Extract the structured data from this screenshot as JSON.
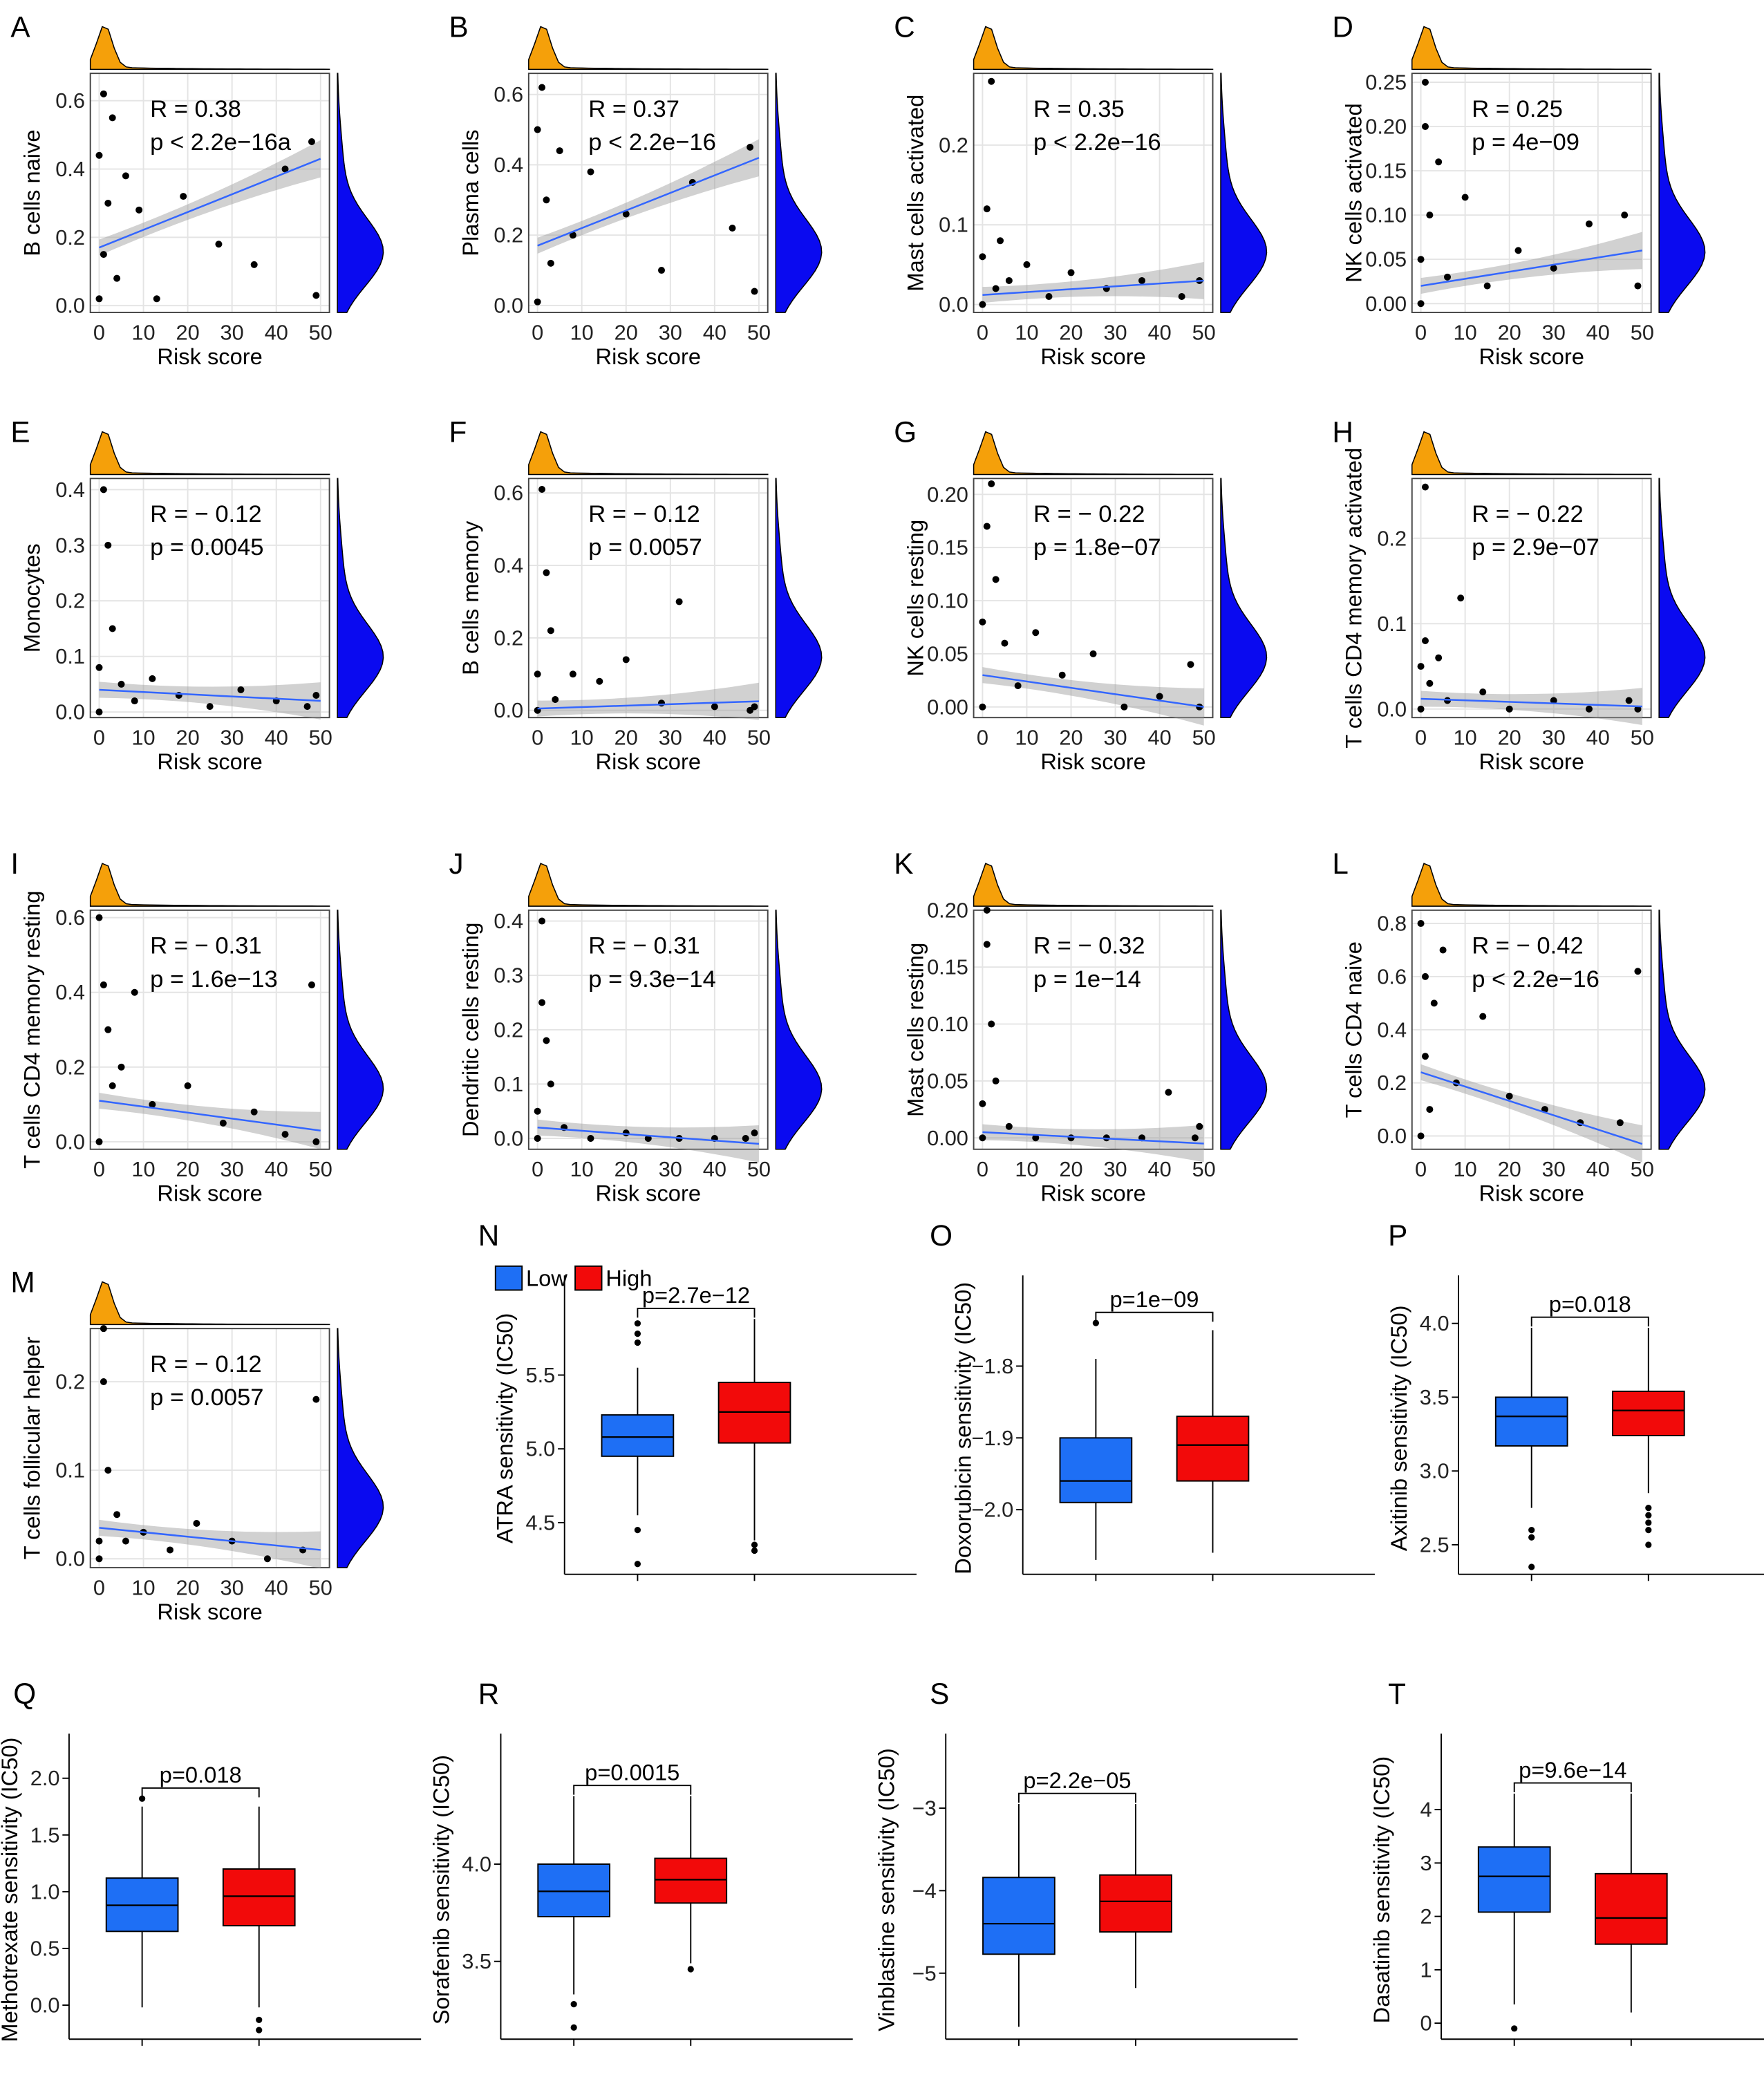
{
  "legend": [
    {
      "name": "Low",
      "color": "#1e6ff5"
    },
    {
      "name": "High",
      "color": "#f20a0a"
    }
  ],
  "chart_data": [
    {
      "type": "scatter",
      "panel": "A",
      "ylabel": "B cells naive",
      "xlabel": "Risk score",
      "r_label": "R = 0.38",
      "p_label": "p < 2.2e−16a",
      "xlim": [
        -2,
        52
      ],
      "xticks": [
        0,
        10,
        20,
        30,
        40,
        50
      ],
      "ylim": [
        -0.02,
        0.68
      ],
      "yticks": [
        {
          "value": 0,
          "label": "0.0"
        },
        0.2,
        0.4,
        0.6
      ],
      "x": [
        0,
        0,
        1,
        1,
        2,
        3,
        4,
        6,
        9,
        13,
        19,
        27,
        35,
        42,
        48,
        49
      ],
      "y": [
        0.02,
        0.44,
        0.62,
        0.15,
        0.3,
        0.55,
        0.08,
        0.38,
        0.28,
        0.02,
        0.32,
        0.18,
        0.12,
        0.4,
        0.48,
        0.03
      ],
      "fit": {
        "x": [
          0,
          50
        ],
        "y": [
          0.17,
          0.43
        ]
      }
    },
    {
      "type": "scatter",
      "panel": "B",
      "ylabel": "Plasma cells",
      "xlabel": "Risk score",
      "r_label": "R = 0.37",
      "p_label": "p < 2.2e−16",
      "xlim": [
        -2,
        52
      ],
      "xticks": [
        0,
        10,
        20,
        30,
        40,
        50
      ],
      "ylim": [
        -0.02,
        0.66
      ],
      "yticks": [
        {
          "value": 0,
          "label": "0.0"
        },
        0.2,
        0.4,
        0.6
      ],
      "x": [
        0,
        0,
        1,
        2,
        3,
        5,
        8,
        12,
        20,
        28,
        35,
        44,
        48,
        49
      ],
      "y": [
        0.01,
        0.5,
        0.62,
        0.3,
        0.12,
        0.44,
        0.2,
        0.38,
        0.26,
        0.1,
        0.35,
        0.22,
        0.45,
        0.04
      ],
      "fit": {
        "x": [
          0,
          50
        ],
        "y": [
          0.17,
          0.42
        ]
      }
    },
    {
      "type": "scatter",
      "panel": "C",
      "ylabel": "Mast cells activated",
      "xlabel": "Risk score",
      "r_label": "R = 0.35",
      "p_label": "p < 2.2e−16",
      "xlim": [
        -2,
        52
      ],
      "xticks": [
        0,
        10,
        20,
        30,
        40,
        50
      ],
      "ylim": [
        -0.01,
        0.29
      ],
      "yticks": [
        {
          "value": 0,
          "label": "0.0"
        },
        0.1,
        0.2
      ],
      "x": [
        0,
        0,
        1,
        2,
        3,
        4,
        6,
        10,
        15,
        20,
        28,
        36,
        45,
        49
      ],
      "y": [
        0.0,
        0.06,
        0.12,
        0.28,
        0.02,
        0.08,
        0.03,
        0.05,
        0.01,
        0.04,
        0.02,
        0.03,
        0.01,
        0.03
      ],
      "fit": {
        "x": [
          0,
          50
        ],
        "y": [
          0.012,
          0.03
        ]
      }
    },
    {
      "type": "scatter",
      "panel": "D",
      "ylabel": "NK cells activated",
      "xlabel": "Risk score",
      "r_label": "R = 0.25",
      "p_label": "p = 4e−09",
      "xlim": [
        -2,
        52
      ],
      "xticks": [
        0,
        10,
        20,
        30,
        40,
        50
      ],
      "ylim": [
        -0.01,
        0.26
      ],
      "yticks": [
        {
          "value": 0,
          "label": "0.00"
        },
        0.05,
        {
          "value": 0.1,
          "label": "0.10"
        },
        0.15,
        {
          "value": 0.2,
          "label": "0.20"
        },
        0.25
      ],
      "x": [
        0,
        0,
        1,
        1,
        2,
        4,
        6,
        10,
        15,
        22,
        30,
        38,
        46,
        49
      ],
      "y": [
        0.0,
        0.05,
        0.25,
        0.2,
        0.1,
        0.16,
        0.03,
        0.12,
        0.02,
        0.06,
        0.04,
        0.09,
        0.1,
        0.02
      ],
      "fit": {
        "x": [
          0,
          50
        ],
        "y": [
          0.02,
          0.06
        ]
      }
    },
    {
      "type": "scatter",
      "panel": "E",
      "ylabel": "Monocytes",
      "xlabel": "Risk score",
      "r_label": "R = − 0.12",
      "p_label": "p = 0.0045",
      "xlim": [
        -2,
        52
      ],
      "xticks": [
        0,
        10,
        20,
        30,
        40,
        50
      ],
      "ylim": [
        -0.01,
        0.42
      ],
      "yticks": [
        {
          "value": 0,
          "label": "0.0"
        },
        0.1,
        0.2,
        0.3,
        0.4
      ],
      "x": [
        0,
        0,
        1,
        2,
        3,
        5,
        8,
        12,
        18,
        25,
        32,
        40,
        47,
        49
      ],
      "y": [
        0.0,
        0.08,
        0.4,
        0.3,
        0.15,
        0.05,
        0.02,
        0.06,
        0.03,
        0.01,
        0.04,
        0.02,
        0.01,
        0.03
      ],
      "fit": {
        "x": [
          0,
          50
        ],
        "y": [
          0.04,
          0.02
        ]
      }
    },
    {
      "type": "scatter",
      "panel": "F",
      "ylabel": "B cells memory",
      "xlabel": "Risk score",
      "r_label": "R = − 0.12",
      "p_label": "p = 0.0057",
      "xlim": [
        -2,
        52
      ],
      "xticks": [
        0,
        10,
        20,
        30,
        40,
        50
      ],
      "ylim": [
        -0.02,
        0.64
      ],
      "yticks": [
        {
          "value": 0,
          "label": "0.0"
        },
        0.2,
        0.4,
        0.6
      ],
      "x": [
        0,
        0,
        1,
        2,
        3,
        4,
        8,
        14,
        20,
        28,
        32,
        40,
        48,
        49
      ],
      "y": [
        0.0,
        0.1,
        0.61,
        0.38,
        0.22,
        0.03,
        0.1,
        0.08,
        0.14,
        0.02,
        0.3,
        0.01,
        0.0,
        0.01
      ],
      "fit": {
        "x": [
          0,
          50
        ],
        "y": [
          0.005,
          0.025
        ]
      }
    },
    {
      "type": "scatter",
      "panel": "G",
      "ylabel": "NK cells resting",
      "xlabel": "Risk score",
      "r_label": "R = − 0.22",
      "p_label": "p = 1.8e−07",
      "xlim": [
        -2,
        52
      ],
      "xticks": [
        0,
        10,
        20,
        30,
        40,
        50
      ],
      "ylim": [
        -0.01,
        0.215
      ],
      "yticks": [
        {
          "value": 0,
          "label": "0.00"
        },
        0.05,
        {
          "value": 0.1,
          "label": "0.10"
        },
        0.15,
        {
          "value": 0.2,
          "label": "0.20"
        }
      ],
      "x": [
        0,
        0,
        1,
        2,
        3,
        5,
        8,
        12,
        18,
        25,
        32,
        40,
        47,
        49
      ],
      "y": [
        0.0,
        0.08,
        0.17,
        0.21,
        0.12,
        0.06,
        0.02,
        0.07,
        0.03,
        0.05,
        0.0,
        0.01,
        0.04,
        0.0
      ],
      "fit": {
        "x": [
          0,
          50
        ],
        "y": [
          0.03,
          0.0
        ]
      }
    },
    {
      "type": "scatter",
      "panel": "H",
      "ylabel": "T cells CD4 memory activated",
      "xlabel": "Risk score",
      "r_label": "R = − 0.22",
      "p_label": "p = 2.9e−07",
      "xlim": [
        -2,
        52
      ],
      "xticks": [
        0,
        10,
        20,
        30,
        40,
        50
      ],
      "ylim": [
        -0.01,
        0.27
      ],
      "yticks": [
        {
          "value": 0,
          "label": "0.0"
        },
        0.1,
        0.2
      ],
      "x": [
        0,
        0,
        1,
        1,
        2,
        4,
        6,
        9,
        14,
        20,
        30,
        38,
        47,
        49
      ],
      "y": [
        0.0,
        0.05,
        0.26,
        0.08,
        0.03,
        0.06,
        0.01,
        0.13,
        0.02,
        0.0,
        0.01,
        0.0,
        0.01,
        0.0
      ],
      "fit": {
        "x": [
          0,
          50
        ],
        "y": [
          0.012,
          0.003
        ]
      }
    },
    {
      "type": "scatter",
      "panel": "I",
      "ylabel": "T cells CD4 memory resting",
      "xlabel": "Risk score",
      "r_label": "R = − 0.31",
      "p_label": "p = 1.6e−13",
      "xlim": [
        -2,
        52
      ],
      "xticks": [
        0,
        10,
        20,
        30,
        40,
        50
      ],
      "ylim": [
        -0.02,
        0.62
      ],
      "yticks": [
        {
          "value": 0,
          "label": "0.0"
        },
        0.2,
        0.4,
        0.6
      ],
      "x": [
        0,
        0,
        1,
        2,
        3,
        5,
        8,
        12,
        20,
        28,
        35,
        42,
        48,
        49
      ],
      "y": [
        0.0,
        0.6,
        0.42,
        0.3,
        0.15,
        0.2,
        0.4,
        0.1,
        0.15,
        0.05,
        0.08,
        0.02,
        0.42,
        0.0
      ],
      "fit": {
        "x": [
          0,
          50
        ],
        "y": [
          0.11,
          0.03
        ]
      }
    },
    {
      "type": "scatter",
      "panel": "J",
      "ylabel": "Dendritic cells resting",
      "xlabel": "Risk score",
      "r_label": "R = − 0.31",
      "p_label": "p = 9.3e−14",
      "xlim": [
        -2,
        52
      ],
      "xticks": [
        0,
        10,
        20,
        30,
        40,
        50
      ],
      "ylim": [
        -0.02,
        0.42
      ],
      "yticks": [
        {
          "value": 0,
          "label": "0.0"
        },
        0.1,
        0.2,
        0.3,
        0.4
      ],
      "x": [
        0,
        0,
        1,
        1,
        2,
        3,
        6,
        12,
        20,
        25,
        32,
        40,
        47,
        49
      ],
      "y": [
        0.0,
        0.05,
        0.4,
        0.25,
        0.18,
        0.1,
        0.02,
        0.0,
        0.01,
        0.0,
        0.0,
        0.0,
        0.0,
        0.01
      ],
      "fit": {
        "x": [
          0,
          50
        ],
        "y": [
          0.02,
          -0.01
        ]
      }
    },
    {
      "type": "scatter",
      "panel": "K",
      "ylabel": "Mast cells resting",
      "xlabel": "Risk score",
      "r_label": "R = − 0.32",
      "p_label": "p = 1e−14",
      "xlim": [
        -2,
        52
      ],
      "xticks": [
        0,
        10,
        20,
        30,
        40,
        50
      ],
      "ylim": [
        -0.01,
        0.2
      ],
      "yticks": [
        {
          "value": 0,
          "label": "0.00"
        },
        0.05,
        {
          "value": 0.1,
          "label": "0.10"
        },
        0.15,
        {
          "value": 0.2,
          "label": "0.20"
        }
      ],
      "x": [
        0,
        0,
        1,
        1,
        2,
        3,
        6,
        12,
        20,
        28,
        36,
        42,
        48,
        49
      ],
      "y": [
        0.0,
        0.03,
        0.2,
        0.17,
        0.1,
        0.05,
        0.01,
        0.0,
        0.0,
        0.0,
        0.0,
        0.04,
        0.0,
        0.01
      ],
      "fit": {
        "x": [
          0,
          50
        ],
        "y": [
          0.005,
          -0.005
        ]
      }
    },
    {
      "type": "scatter",
      "panel": "L",
      "ylabel": "T cells CD4 naive",
      "xlabel": "Risk score",
      "r_label": "R = − 0.42",
      "p_label": "p < 2.2e−16",
      "xlim": [
        -2,
        52
      ],
      "xticks": [
        0,
        10,
        20,
        30,
        40,
        50
      ],
      "ylim": [
        -0.05,
        0.85
      ],
      "yticks": [
        {
          "value": 0,
          "label": "0.0"
        },
        0.2,
        0.4,
        0.6,
        0.8
      ],
      "x": [
        0,
        0,
        1,
        1,
        2,
        3,
        5,
        8,
        14,
        20,
        28,
        36,
        45,
        49
      ],
      "y": [
        0.0,
        0.8,
        0.6,
        0.3,
        0.1,
        0.5,
        0.7,
        0.2,
        0.45,
        0.15,
        0.1,
        0.05,
        0.05,
        0.62
      ],
      "fit": {
        "x": [
          0,
          50
        ],
        "y": [
          0.24,
          -0.03
        ]
      }
    },
    {
      "type": "scatter",
      "panel": "M",
      "ylabel": "T cells follicular helper",
      "xlabel": "Risk score",
      "r_label": "R = − 0.12",
      "p_label": "p = 0.0057",
      "xlim": [
        -2,
        52
      ],
      "xticks": [
        0,
        10,
        20,
        30,
        40,
        50
      ],
      "ylim": [
        -0.01,
        0.26
      ],
      "yticks": [
        {
          "value": 0,
          "label": "0.0"
        },
        0.1,
        0.2
      ],
      "x": [
        0,
        0,
        1,
        1,
        2,
        4,
        6,
        10,
        16,
        22,
        30,
        38,
        46,
        49
      ],
      "y": [
        0.0,
        0.02,
        0.26,
        0.2,
        0.1,
        0.05,
        0.02,
        0.03,
        0.01,
        0.04,
        0.02,
        0.0,
        0.01,
        0.18
      ],
      "fit": {
        "x": [
          0,
          50
        ],
        "y": [
          0.035,
          0.01
        ]
      }
    },
    {
      "type": "box",
      "panel": "N",
      "legend": "top",
      "ylabel": "ATRA sensitivity (IC50)",
      "p_label": "p=2.7e−12",
      "ylim": [
        4.15,
        5.95
      ],
      "yticks": [
        4.5,
        {
          "value": 5,
          "label": "5.0"
        },
        5.5
      ],
      "boxes": [
        [
          4.55,
          4.95,
          5.08,
          5.23,
          5.55
        ],
        [
          4.38,
          5.04,
          5.25,
          5.45,
          5.88
        ]
      ],
      "outliers": [
        [
          5.72,
          5.78,
          5.85,
          4.45,
          4.22
        ],
        [
          4.35,
          4.31
        ]
      ]
    },
    {
      "type": "box",
      "panel": "O",
      "ylabel": "Doxorubicin sensitivity (IC50)",
      "p_label": "p=1e−09",
      "ylim": [
        -2.09,
        -1.72
      ],
      "yticks": [
        {
          "value": -2,
          "label": "−2.0"
        },
        {
          "value": -1.9,
          "label": "−1.9"
        },
        {
          "value": -1.8,
          "label": "−1.8"
        }
      ],
      "boxes": [
        [
          -2.07,
          -1.99,
          -1.96,
          -1.9,
          -1.79
        ],
        [
          -2.06,
          -1.96,
          -1.91,
          -1.87,
          -1.75
        ]
      ],
      "outliers": [
        [
          -1.74
        ],
        []
      ]
    },
    {
      "type": "box",
      "panel": "P",
      "ylabel": "Axitinib sensitivity (IC50)",
      "p_label": "p=0.018",
      "ylim": [
        2.3,
        4.1
      ],
      "yticks": [
        2.5,
        {
          "value": 3,
          "label": "3.0"
        },
        3.5,
        {
          "value": 4,
          "label": "4.0"
        }
      ],
      "boxes": [
        [
          2.75,
          3.17,
          3.37,
          3.5,
          3.97
        ],
        [
          2.85,
          3.24,
          3.41,
          3.54,
          3.97
        ]
      ],
      "outliers": [
        [
          2.6,
          2.55,
          2.35
        ],
        [
          2.75,
          2.7,
          2.65,
          2.6,
          2.5
        ]
      ]
    },
    {
      "type": "box",
      "panel": "Q",
      "ylabel": "Methotrexate sensitivity (IC50)",
      "p_label": "p=0.018",
      "ylim": [
        -0.3,
        2.1
      ],
      "yticks": [
        {
          "value": 0,
          "label": "0.0"
        },
        0.5,
        {
          "value": 1,
          "label": "1.0"
        },
        1.5,
        {
          "value": 2,
          "label": "2.0"
        }
      ],
      "boxes": [
        [
          -0.02,
          0.65,
          0.88,
          1.12,
          1.75
        ],
        [
          -0.02,
          0.7,
          0.96,
          1.2,
          1.75
        ]
      ],
      "outliers": [
        [
          1.82
        ],
        [
          -0.13,
          -0.22
        ]
      ]
    },
    {
      "type": "box",
      "panel": "R",
      "ylabel": "Sorafenib sensitivity (IC50)",
      "p_label": "p=0.0015",
      "ylim": [
        3.1,
        4.5
      ],
      "yticks": [
        3.5,
        {
          "value": 4,
          "label": "4.0"
        }
      ],
      "boxes": [
        [
          3.33,
          3.73,
          3.86,
          4.0,
          4.35
        ],
        [
          3.49,
          3.8,
          3.92,
          4.03,
          4.35
        ]
      ],
      "outliers": [
        [
          3.28,
          3.16
        ],
        [
          3.46
        ]
      ]
    },
    {
      "type": "box",
      "panel": "S",
      "ylabel": "Vinblastine sensitivity (IC50)",
      "p_label": "p=2.2e−05",
      "ylim": [
        -5.8,
        -2.5
      ],
      "yticks": [
        {
          "value": -5,
          "label": "−5"
        },
        {
          "value": -4,
          "label": "−4"
        },
        {
          "value": -3,
          "label": "−3"
        }
      ],
      "boxes": [
        [
          -5.65,
          -4.77,
          -4.4,
          -3.84,
          -2.95
        ],
        [
          -5.18,
          -4.5,
          -4.13,
          -3.81,
          -2.95
        ]
      ],
      "outliers": [
        [],
        []
      ]
    },
    {
      "type": "box",
      "panel": "T",
      "ylabel": "Dasatinib sensitivity (IC50)",
      "p_label": "p=9.6e−14",
      "ylim": [
        -0.3,
        4.8
      ],
      "yticks": [
        0,
        1,
        2,
        3,
        4
      ],
      "boxes": [
        [
          0.35,
          2.08,
          2.75,
          3.3,
          4.3
        ],
        [
          0.2,
          1.48,
          1.97,
          2.8,
          4.3
        ]
      ],
      "outliers": [
        [
          -0.1
        ],
        []
      ]
    }
  ]
}
